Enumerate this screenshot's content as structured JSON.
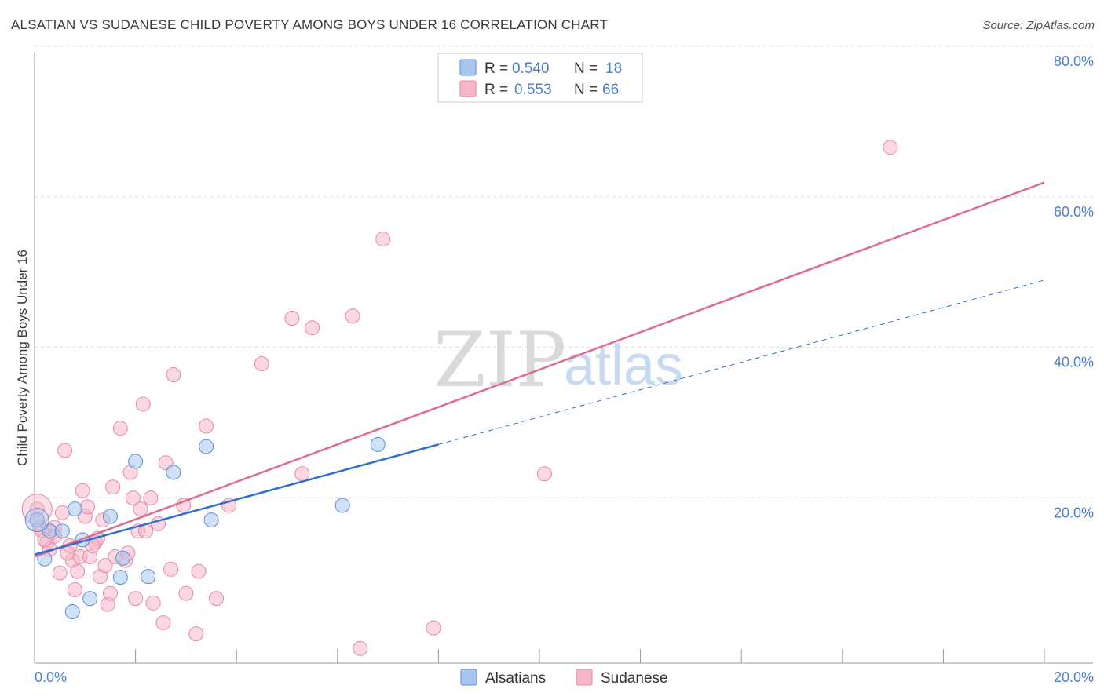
{
  "header": {
    "title": "ALSATIAN VS SUDANESE CHILD POVERTY AMONG BOYS UNDER 16 CORRELATION CHART",
    "source": "Source: ZipAtlas.com"
  },
  "watermark": {
    "zip": "ZIP",
    "atlas": "atlas"
  },
  "legend": {
    "rows": [
      {
        "r_label": "R =",
        "r_value": "0.540",
        "n_label": "N =",
        "n_value": "18",
        "color": "#a9c6ee"
      },
      {
        "r_label": "R =",
        "r_value": "0.553",
        "n_label": "N =",
        "n_value": "66",
        "color": "#f7b6c8"
      }
    ]
  },
  "bottom_legend": [
    {
      "label": "Alsatians",
      "color": "#a9c6ee"
    },
    {
      "label": "Sudanese",
      "color": "#f7b6c8"
    }
  ],
  "colors": {
    "alsatian_fill": "#a9c6ee",
    "alsatian_stroke": "#5b8fd6",
    "alsatian_line": "#2f6fcf",
    "sudanese_fill": "#f7b6c8",
    "sudanese_stroke": "#e58aa6",
    "sudanese_line": "#e06a92",
    "tick_text": "#4a7fd0",
    "grid": "#dddddd"
  },
  "chart_data": {
    "type": "scatter",
    "title": "ALSATIAN VS SUDANESE CHILD POVERTY AMONG BOYS UNDER 16 CORRELATION CHART",
    "xlabel": "",
    "ylabel": "Child Poverty Among Boys Under 16",
    "xlim": [
      0,
      20
    ],
    "ylim": [
      0,
      80
    ],
    "x_ticks": [
      "0.0%",
      "20.0%"
    ],
    "y_ticks": [
      "20.0%",
      "40.0%",
      "60.0%",
      "80.0%"
    ],
    "y_tick_values": [
      20,
      40,
      60,
      80
    ],
    "grid": true,
    "legend_position": "top-center",
    "series": [
      {
        "name": "Alsatians",
        "points": [
          [
            0.05,
            19.5
          ],
          [
            0.2,
            14.2
          ],
          [
            0.3,
            18.0
          ],
          [
            0.55,
            18.0
          ],
          [
            0.75,
            7.0
          ],
          [
            0.8,
            21.0
          ],
          [
            0.95,
            16.8
          ],
          [
            1.1,
            8.8
          ],
          [
            1.5,
            20.0
          ],
          [
            1.7,
            11.7
          ],
          [
            1.75,
            14.3
          ],
          [
            2.0,
            27.5
          ],
          [
            2.25,
            11.8
          ],
          [
            2.75,
            26.0
          ],
          [
            3.4,
            29.5
          ],
          [
            3.5,
            19.5
          ],
          [
            6.1,
            21.5
          ],
          [
            6.8,
            29.8
          ]
        ],
        "trend": {
          "x0": 0,
          "y0": 14.8,
          "x1": 8.0,
          "y1": 29.8,
          "dash_to_x": 20,
          "dash_to_y": 52.2
        }
      },
      {
        "name": "Sudanese",
        "points": [
          [
            0.05,
            21.0
          ],
          [
            0.1,
            18.5
          ],
          [
            0.15,
            18.0
          ],
          [
            0.25,
            16.5
          ],
          [
            0.3,
            15.5
          ],
          [
            0.35,
            17.8
          ],
          [
            0.4,
            18.5
          ],
          [
            0.5,
            12.3
          ],
          [
            0.55,
            20.5
          ],
          [
            0.6,
            29.0
          ],
          [
            0.7,
            16.0
          ],
          [
            0.75,
            14.0
          ],
          [
            0.8,
            10.0
          ],
          [
            0.9,
            14.5
          ],
          [
            0.95,
            23.5
          ],
          [
            1.0,
            20.0
          ],
          [
            1.05,
            21.3
          ],
          [
            1.1,
            14.5
          ],
          [
            1.2,
            16.5
          ],
          [
            1.25,
            17.0
          ],
          [
            1.3,
            11.8
          ],
          [
            1.35,
            19.5
          ],
          [
            1.4,
            13.3
          ],
          [
            1.45,
            8.0
          ],
          [
            1.5,
            9.5
          ],
          [
            1.55,
            24.0
          ],
          [
            1.6,
            14.5
          ],
          [
            1.7,
            32.0
          ],
          [
            1.8,
            14.0
          ],
          [
            1.85,
            15.0
          ],
          [
            1.9,
            26.0
          ],
          [
            1.95,
            22.5
          ],
          [
            2.0,
            8.8
          ],
          [
            2.05,
            18.0
          ],
          [
            2.1,
            21.0
          ],
          [
            2.15,
            35.3
          ],
          [
            2.2,
            18.0
          ],
          [
            2.3,
            22.5
          ],
          [
            2.35,
            8.2
          ],
          [
            2.45,
            19.0
          ],
          [
            2.55,
            5.5
          ],
          [
            2.6,
            27.3
          ],
          [
            2.7,
            12.8
          ],
          [
            2.75,
            39.3
          ],
          [
            2.95,
            21.5
          ],
          [
            3.0,
            9.5
          ],
          [
            3.2,
            4.0
          ],
          [
            3.25,
            12.5
          ],
          [
            3.4,
            32.3
          ],
          [
            3.6,
            8.8
          ],
          [
            3.85,
            21.5
          ],
          [
            4.5,
            40.8
          ],
          [
            5.1,
            47.0
          ],
          [
            5.3,
            25.8
          ],
          [
            5.5,
            45.7
          ],
          [
            6.3,
            47.3
          ],
          [
            6.45,
            2.0
          ],
          [
            6.9,
            57.8
          ],
          [
            7.9,
            4.8
          ],
          [
            10.1,
            25.8
          ],
          [
            16.95,
            70.3
          ],
          [
            0.4,
            17.3
          ],
          [
            0.65,
            15.0
          ],
          [
            1.15,
            16.0
          ],
          [
            0.2,
            16.8
          ],
          [
            0.85,
            12.5
          ]
        ],
        "trend": {
          "x0": 0,
          "y0": 14.5,
          "x1": 20,
          "y1": 65.5
        }
      }
    ]
  }
}
